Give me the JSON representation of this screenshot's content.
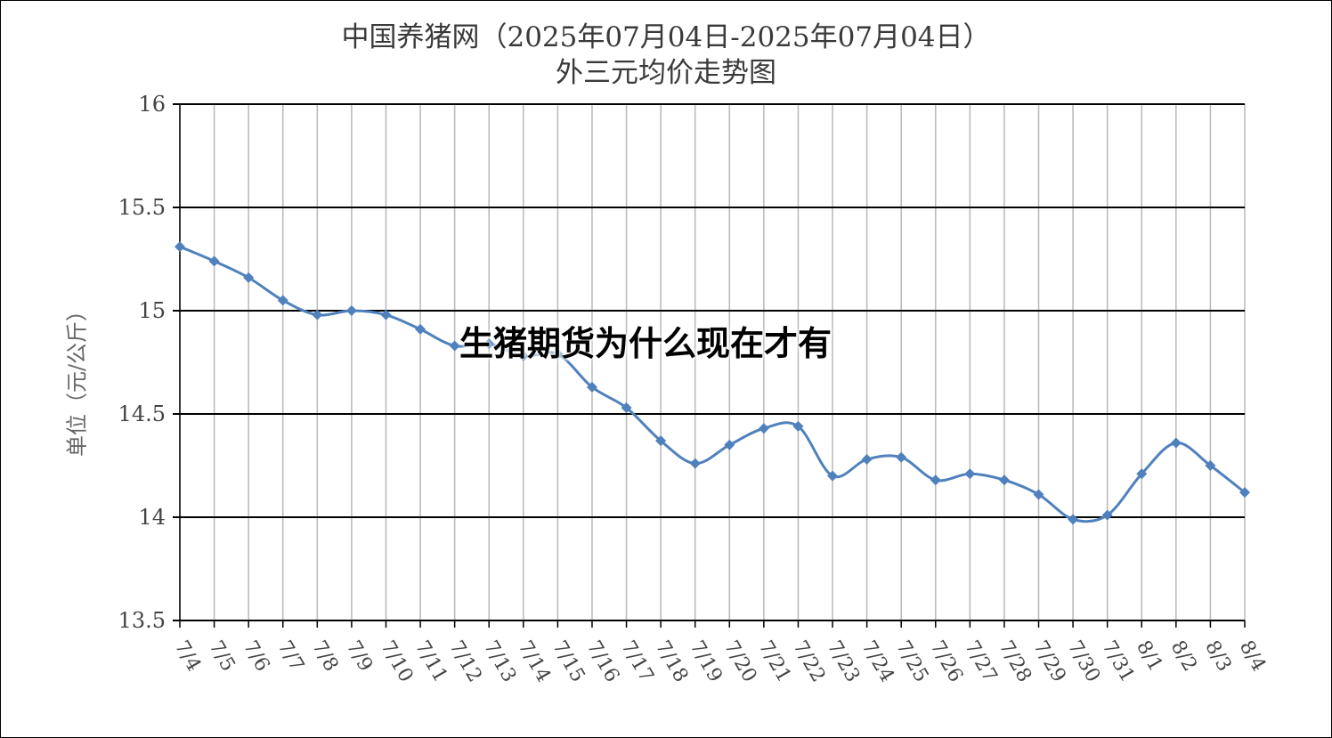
{
  "chart_data": {
    "type": "line",
    "title": "中国养猪网（2025年07月04日-2025年07月04日）",
    "subtitle": "外三元均价走势图",
    "ylabel": "单位（元/公斤）",
    "xlabel": "",
    "ylim": [
      13.5,
      16
    ],
    "yticks": [
      "13.5",
      "14",
      "14.5",
      "15",
      "15.5",
      "16"
    ],
    "grid": true,
    "categories": [
      "7/4",
      "7/5",
      "7/6",
      "7/7",
      "7/8",
      "7/9",
      "7/10",
      "7/11",
      "7/12",
      "7/13",
      "7/14",
      "7/15",
      "7/16",
      "7/17",
      "7/18",
      "7/19",
      "7/20",
      "7/21",
      "7/22",
      "7/23",
      "7/24",
      "7/25",
      "7/26",
      "7/27",
      "7/28",
      "7/29",
      "7/30",
      "7/31",
      "8/1",
      "8/2",
      "8/3",
      "8/4"
    ],
    "values": [
      15.31,
      15.24,
      15.16,
      15.05,
      14.98,
      15.0,
      14.98,
      14.91,
      14.83,
      14.84,
      14.78,
      14.79,
      14.63,
      14.53,
      14.37,
      14.26,
      14.35,
      14.43,
      14.44,
      14.2,
      14.28,
      14.29,
      14.18,
      14.21,
      14.18,
      14.11,
      13.99,
      14.01,
      14.21,
      14.36,
      14.25,
      14.12
    ],
    "line_color": "#4f81bd"
  },
  "overlay_text": "生猪期货为什么现在才有"
}
